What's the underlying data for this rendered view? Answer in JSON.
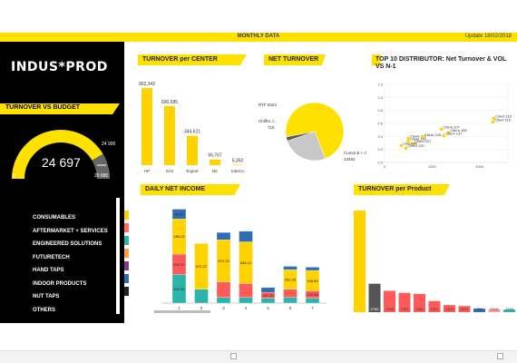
{
  "header": {
    "title": "MONTHLY DATA",
    "update": "Update 18/02/2018"
  },
  "logo": "INDUS*PROD",
  "turnover_budget": {
    "title": "TURNOVER  VS BUDGET",
    "value": "24 697",
    "target": "24 900",
    "min": "0",
    "max": "29 880",
    "fraction": 0.83
  },
  "menu": [
    "CONSUMABLES",
    "AFTERMARKET + SERVICES",
    "ENGINEERED SOLUTIONS",
    "FUTURETECH",
    "HAND TAPS",
    "INDOOR PRODUCTS",
    "NUT TAPS",
    "OTHERS"
  ],
  "swatch_colors": [
    "#ffd200",
    "#ff6a6a",
    "#2bb5aa",
    "#ffa040",
    "#7a3c8c",
    "#2f6db5",
    "#222222"
  ],
  "sections": {
    "center": "TURNOVER per CENTER",
    "net": "NET TURNOVER",
    "top10": "TOP 10 DISTRIBUTOR: Net Turnover & VOL VS N-1",
    "daily": "DAILY NET INCOME",
    "product": "TURNOVER per Product"
  },
  "chart_data": [
    {
      "type": "bar",
      "title": "TURNOVER per CENTER",
      "categories": [
        "HP",
        "SAV",
        "Export",
        "NC",
        "Interco"
      ],
      "values": [
        902342,
        690685,
        344621,
        66767,
        5350
      ],
      "labels": [
        "902,342",
        "690,685",
        "344,621",
        "66,767",
        "5,350"
      ],
      "color": "#ffd200"
    },
    {
      "type": "pie",
      "title": "NET TURNOVER",
      "slices": [
        {
          "label": "Cumul & + ri 23492",
          "value": 23492,
          "color": "#ffe100"
        },
        {
          "label": "RTF 8424",
          "value": 8424,
          "color": "#c8c8c8"
        },
        {
          "label": "Chiffre J... 715",
          "value": 715,
          "color": "#555555"
        }
      ]
    },
    {
      "type": "scatter",
      "title": "TOP 10 DISTRIBUTOR: Net Turnover & VOL VS N-1",
      "points": [
        {
          "label": "Client 110",
          "x": 2300,
          "y": 0.68
        },
        {
          "label": "Client 116",
          "x": 2280,
          "y": 0.62
        },
        {
          "label": "Client 107",
          "x": 1200,
          "y": 0.51
        },
        {
          "label": "Client 108",
          "x": 1350,
          "y": 0.46
        },
        {
          "label": "Client 137",
          "x": 1250,
          "y": 0.41
        },
        {
          "label": "Client 112",
          "x": 500,
          "y": 0.37
        },
        {
          "label": "Client 128",
          "x": 800,
          "y": 0.39
        },
        {
          "label": "Client 141",
          "x": 500,
          "y": 0.33
        },
        {
          "label": "Client 127",
          "x": 600,
          "y": 0.29
        },
        {
          "label": "Client 89",
          "x": 350,
          "y": 0.26
        },
        {
          "label": "Client 120",
          "x": 450,
          "y": 0.22
        }
      ],
      "ylabels": [
        "1.2",
        "1.0",
        "0.8",
        "0.6",
        "0.4",
        "0.2",
        "0.0"
      ],
      "xlabels": [
        "0",
        "1000",
        "2000"
      ],
      "xlim": [
        0,
        2600
      ],
      "ylim": [
        0,
        1.2
      ]
    },
    {
      "type": "bar",
      "title": "DAILY NET INCOME",
      "stacked": true,
      "categories": [
        "1",
        "2",
        "3",
        "4",
        "5",
        "6",
        "7"
      ],
      "colors": [
        "#2bb5aa",
        "#ff5a5a",
        "#ffd200",
        "#2f6db5"
      ],
      "series": [
        {
          "values": [
            70,
            34,
            14,
            14,
            12,
            14,
            12
          ],
          "labels": [
            "402.59",
            "",
            "",
            "",
            "",
            "",
            ""
          ]
        },
        {
          "values": [
            50,
            0,
            38,
            34,
            14,
            20,
            18
          ],
          "labels": [
            "532.01",
            "",
            "",
            "",
            "167.20",
            "",
            "120.58"
          ]
        },
        {
          "values": [
            86,
            112,
            103,
            102,
            0,
            48,
            50
          ],
          "labels": [
            "286.22",
            "572.27",
            "670.78",
            "846.12",
            "",
            "352.26",
            "408.89"
          ]
        },
        {
          "values": [
            24,
            0,
            18,
            26,
            12,
            8,
            8
          ],
          "labels": [
            "53.01",
            "",
            "",
            "",
            "",
            "",
            ""
          ]
        }
      ],
      "ylim": [
        0,
        300
      ]
    },
    {
      "type": "bar",
      "title": "TURNOVER per Product",
      "labels": [
        "",
        "2766",
        "1395",
        "1390",
        "1382",
        "1327",
        "1322",
        "1121",
        "781",
        "1010",
        "1265"
      ],
      "values": [
        1000,
        280,
        210,
        190,
        180,
        110,
        70,
        60,
        35,
        30,
        25
      ],
      "colors": [
        "#ffd200",
        "#555555",
        "#ff5a5a",
        "#ff5a5a",
        "#ff5a5a",
        "#ff5a5a",
        "#ff5a5a",
        "#ff5a5a",
        "#2f6db5",
        "#ff9b9b",
        "#2bb5aa"
      ]
    }
  ]
}
